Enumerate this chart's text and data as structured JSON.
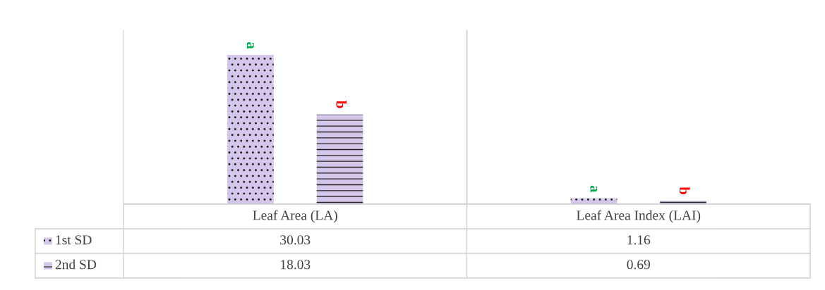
{
  "chart_data": {
    "type": "bar",
    "categories": [
      "Leaf Area (LA)",
      "Leaf Area Index (LAI)"
    ],
    "series": [
      {
        "name": "1st SD",
        "color": "#d5c6ec",
        "values": [
          30.03,
          1.16
        ]
      },
      {
        "name": "2nd SD",
        "color": "#d5c6ec",
        "values": [
          18.03,
          0.69
        ]
      }
    ],
    "data_labels": true,
    "legend": "bottom left",
    "annotations": [
      "a",
      "b",
      "a",
      "b"
    ]
  }
}
